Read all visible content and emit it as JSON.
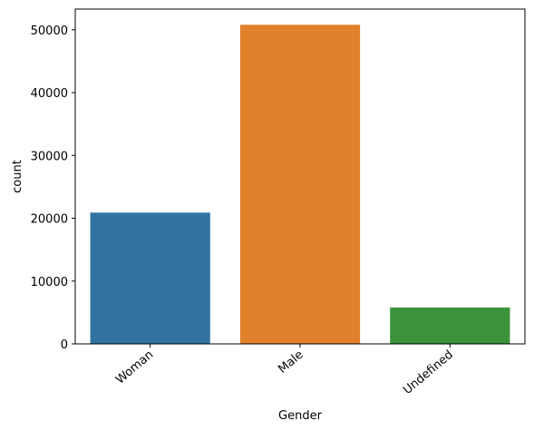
{
  "chart_data": {
    "type": "bar",
    "title": "",
    "xlabel": "Gender",
    "ylabel": "count",
    "categories": [
      "Woman",
      "Male",
      "Undefined"
    ],
    "values": [
      20900,
      50800,
      5800
    ],
    "colors": [
      "#3274a1",
      "#e1812c",
      "#3a923a"
    ],
    "ylim": [
      0,
      53300
    ],
    "yticks": [
      0,
      10000,
      20000,
      30000,
      40000,
      50000
    ],
    "ytick_labels": [
      "0",
      "10000",
      "20000",
      "30000",
      "40000",
      "50000"
    ],
    "xtick_rotation": "45deg right-aligned",
    "grid": false,
    "legend": "none"
  }
}
